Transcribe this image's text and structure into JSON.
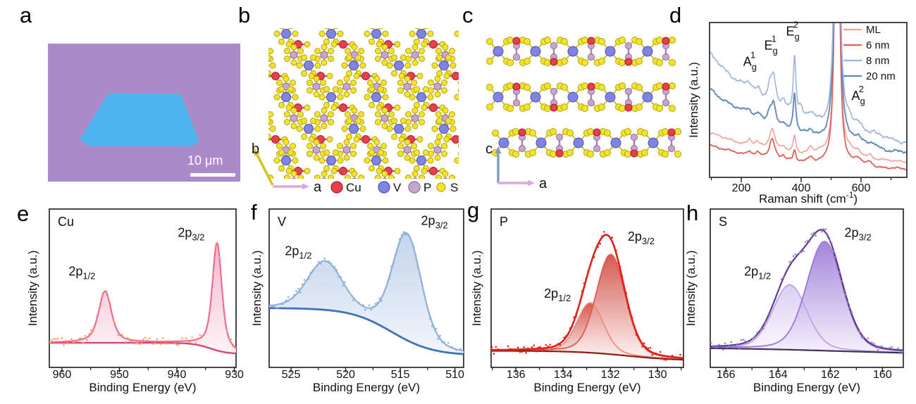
{
  "panel_labels": {
    "a": "a",
    "b": "b",
    "c": "c",
    "d": "d",
    "e": "e",
    "f": "f",
    "g": "g",
    "h": "h"
  },
  "panel_a": {
    "scale_label": "10 μm",
    "background_color": "#ab8ac9",
    "flake_color": "#4db5ee"
  },
  "structure": {
    "atoms": [
      {
        "symbol": "Cu",
        "color": "#e6404c",
        "edge": "#b01828"
      },
      {
        "symbol": "V",
        "color": "#7f84e2",
        "edge": "#4a50b8"
      },
      {
        "symbol": "P",
        "color": "#c8a5cd",
        "edge": "#96679c"
      },
      {
        "symbol": "S",
        "color": "#f2e42c",
        "edge": "#b8a309"
      }
    ],
    "axis_b": {
      "up": "b",
      "right": "a",
      "up_color": "#d4c416",
      "right_color": "#d9a9d9"
    },
    "axis_c": {
      "up": "c",
      "right": "a",
      "up_color": "#7f9fc0",
      "right_color": "#d9a9d9"
    },
    "bond_color": "#cfc028",
    "cu_bond_color": "#d94040",
    "p_bond_color": "#a885ad"
  },
  "chart_data": [
    {
      "type": "line",
      "panel": "d",
      "xlabel_pre": "Raman shift (cm",
      "xlabel_sup": "-1",
      "xlabel_post": ")",
      "ylabel": "Intensity (a.u.)",
      "x_range": [
        94,
        753
      ],
      "x_ticks": [
        200,
        400,
        600
      ],
      "minor_step": 100,
      "ylim": [
        0,
        1
      ],
      "grid": false,
      "legend_position": "top-right",
      "legend": [
        {
          "label": "ML",
          "color": "#f2a19b"
        },
        {
          "label": "6 nm",
          "color": "#e0605a"
        },
        {
          "label": "8 nm",
          "color": "#9cb4dd"
        },
        {
          "label": "20 nm",
          "color": "#5c86c0"
        }
      ],
      "annotations": [
        {
          "main": "A",
          "sub": "g",
          "sup": "1",
          "x": 229,
          "fy": 0.28
        },
        {
          "main": "E",
          "sub": "g",
          "sup": "1",
          "x": 299,
          "fy": 0.175
        },
        {
          "main": "E",
          "sub": "g",
          "sup": "2",
          "x": 372,
          "fy": 0.085
        },
        {
          "main": "A",
          "sub": "g",
          "sup": "2",
          "x": 591,
          "fy": 0.5
        }
      ],
      "series": [
        {
          "name": "ML",
          "color": "#f2a19b",
          "width": 1.6,
          "offset": 0.085,
          "decay": 0.205,
          "tau": 250,
          "noise": 0.007,
          "peaks": [
            [
              228,
              0.035,
              8
            ],
            [
              253,
              0.03,
              8
            ],
            [
              303,
              0.14,
              11
            ],
            [
              340,
              0.03,
              8
            ],
            [
              378,
              0.11,
              5
            ],
            [
              432,
              0.045,
              10
            ],
            [
              460,
              0.02,
              8
            ],
            [
              520,
              5,
              5
            ],
            [
              560,
              0.03,
              10
            ],
            [
              590,
              0.04,
              14
            ],
            [
              630,
              0.025,
              10
            ]
          ]
        },
        {
          "name": "6 nm",
          "color": "#e0605a",
          "width": 1.8,
          "offset": 0.04,
          "decay": 0.17,
          "tau": 250,
          "noise": 0.007,
          "peaks": [
            [
              228,
              0.03,
              8
            ],
            [
              253,
              0.025,
              8
            ],
            [
              303,
              0.13,
              11
            ],
            [
              340,
              0.03,
              8
            ],
            [
              378,
              0.07,
              5
            ],
            [
              432,
              0.04,
              10
            ],
            [
              520,
              5,
              5
            ],
            [
              590,
              0.045,
              14
            ],
            [
              630,
              0.03,
              10
            ]
          ]
        },
        {
          "name": "20 nm",
          "color": "#5c86c0",
          "width": 1.8,
          "offset": 0.115,
          "decay": 0.455,
          "tau": 280,
          "noise": 0.011,
          "peaks": [
            [
              225,
              0.04,
              12
            ],
            [
              258,
              0.035,
              10
            ],
            [
              295,
              0.07,
              9
            ],
            [
              308,
              0.12,
              9
            ],
            [
              340,
              0.04,
              9
            ],
            [
              378,
              0.26,
              5.5
            ],
            [
              432,
              0.04,
              12
            ],
            [
              520,
              5,
              5.5
            ],
            [
              590,
              0.06,
              16
            ],
            [
              640,
              0.03,
              12
            ]
          ]
        },
        {
          "name": "8 nm",
          "color": "#9cb4dd",
          "width": 1.6,
          "offset": 0.16,
          "decay": 0.64,
          "tau": 280,
          "noise": 0.013,
          "peaks": [
            [
              225,
              0.05,
              12
            ],
            [
              258,
              0.045,
              10
            ],
            [
              295,
              0.1,
              9
            ],
            [
              308,
              0.17,
              9
            ],
            [
              340,
              0.05,
              9
            ],
            [
              378,
              0.38,
              5.5
            ],
            [
              398,
              0.05,
              7
            ],
            [
              432,
              0.05,
              12
            ],
            [
              520,
              5,
              5.5
            ],
            [
              560,
              0.04,
              12
            ],
            [
              590,
              0.07,
              16
            ],
            [
              640,
              0.035,
              12
            ],
            [
              690,
              0.02,
              12
            ]
          ]
        }
      ]
    },
    {
      "type": "line",
      "panel": "e",
      "element": "Cu",
      "xlabel": "Binding Energy (eV)",
      "ylabel": "Intensity (a.u.)",
      "x_range": [
        962.2,
        929.7
      ],
      "x_ticks": [
        960,
        950,
        940,
        930
      ],
      "minor_step": 5,
      "eta": 0.55,
      "baseline": {
        "left": 0.155,
        "right": 0.085,
        "center": 934.2,
        "width": 1.5
      },
      "peaks": [
        {
          "label": "2p",
          "sub": "1/2",
          "c": 952.5,
          "a": 0.325,
          "w": 1.05,
          "lfx": 0.175,
          "lfy": 0.42
        },
        {
          "label": "2p",
          "sub": "3/2",
          "c": 933.0,
          "a": 0.68,
          "w": 0.78,
          "lfx": 0.76,
          "lfy": 0.175
        }
      ],
      "style": {
        "envelope": "#ec6b95",
        "env_w": 2.2,
        "baseline_color": "#d84577",
        "base_w": 2.4,
        "dots": "#f2a35e",
        "mode": "envelope",
        "fill_top": "#f2afc9",
        "fill_bottom": "#fdf1f6"
      }
    },
    {
      "type": "line",
      "panel": "f",
      "element": "V",
      "xlabel": "Binding Energy (eV)",
      "ylabel": "Intensity (a.u.)",
      "x_range": [
        527.0,
        509.2
      ],
      "x_ticks": [
        525,
        520,
        515,
        510
      ],
      "minor_step": 2.5,
      "eta": 0.25,
      "baseline": {
        "left": 0.375,
        "right": 0.075,
        "center": 515.8,
        "width": 1.9
      },
      "peaks": [
        {
          "label": "2p",
          "sub": "1/2",
          "c": 521.9,
          "a": 0.3,
          "w": 1.55,
          "lfx": 0.15,
          "lfy": 0.29
        },
        {
          "label": "2p",
          "sub": "3/2",
          "c": 514.4,
          "a": 0.67,
          "w": 1.3,
          "lfx": 0.85,
          "lfy": 0.1
        }
      ],
      "style": {
        "envelope": "#8fb0da",
        "env_w": 2.2,
        "baseline_color": "#3f74b8",
        "base_w": 2.8,
        "dots": "#8fb0da",
        "mode": "envelope",
        "fill_top": "#bdcfe9",
        "fill_bottom": "#f1f5fb"
      }
    },
    {
      "type": "line",
      "panel": "g",
      "element": "P",
      "xlabel": "Binding Energy (eV)",
      "ylabel": "Intensity (a.u.)",
      "x_range": [
        137.05,
        128.9
      ],
      "x_ticks": [
        136,
        134,
        132,
        130
      ],
      "minor_step": 1,
      "eta": 0.2,
      "baseline": {
        "left": 0.105,
        "right": 0.042,
        "center": 131.3,
        "width": 1.1
      },
      "peaks": [
        {
          "label": "2p",
          "sub": "1/2",
          "c": 132.85,
          "a": 0.315,
          "w": 0.55,
          "lfx": 0.345,
          "lfy": 0.56
        },
        {
          "label": "2p",
          "sub": "3/2",
          "c": 131.98,
          "a": 0.63,
          "w": 0.6,
          "lfx": 0.78,
          "lfy": 0.2
        }
      ],
      "style": {
        "envelope": "#e0221a",
        "env_w": 2.6,
        "baseline_color": "#8c1a12",
        "base_w": 2.2,
        "dots": "#e0221a",
        "mode": "components",
        "comp_strokes": [
          "#ee8b82",
          "#e8574e"
        ],
        "comp_fills": [
          [
            "#d0493f",
            "#fdf5f4"
          ],
          [
            "#d0493f",
            "#fdf5f4"
          ]
        ]
      }
    },
    {
      "type": "line",
      "panel": "h",
      "element": "S",
      "xlabel": "Binding Energy (eV)",
      "ylabel": "Intensity (a.u.)",
      "x_range": [
        166.6,
        159.2
      ],
      "x_ticks": [
        166,
        164,
        162,
        160
      ],
      "minor_step": 1,
      "eta": 0.2,
      "baseline": {
        "left": 0.125,
        "right": 0.082,
        "center": 161.8,
        "width": 2.2
      },
      "peaks": [
        {
          "label": "2p",
          "sub": "1/2",
          "c": 163.55,
          "a": 0.41,
          "w": 0.64,
          "lfx": 0.245,
          "lfy": 0.42
        },
        {
          "label": "2p",
          "sub": "3/2",
          "c": 162.22,
          "a": 0.69,
          "w": 0.67,
          "lfx": 0.765,
          "lfy": 0.175
        }
      ],
      "style": {
        "envelope": "#5b3a8c",
        "env_w": 2.2,
        "baseline_color": "#3f3358",
        "base_w": 2.2,
        "dots": "#9f7fd0",
        "mode": "components",
        "comp_strokes": [
          "#bba5e6",
          "#9d76dc"
        ],
        "comp_fills": [
          [
            "#d6c9f2",
            "#fbf9fe"
          ],
          [
            "#9a78d6",
            "#f4effb"
          ]
        ]
      }
    }
  ]
}
